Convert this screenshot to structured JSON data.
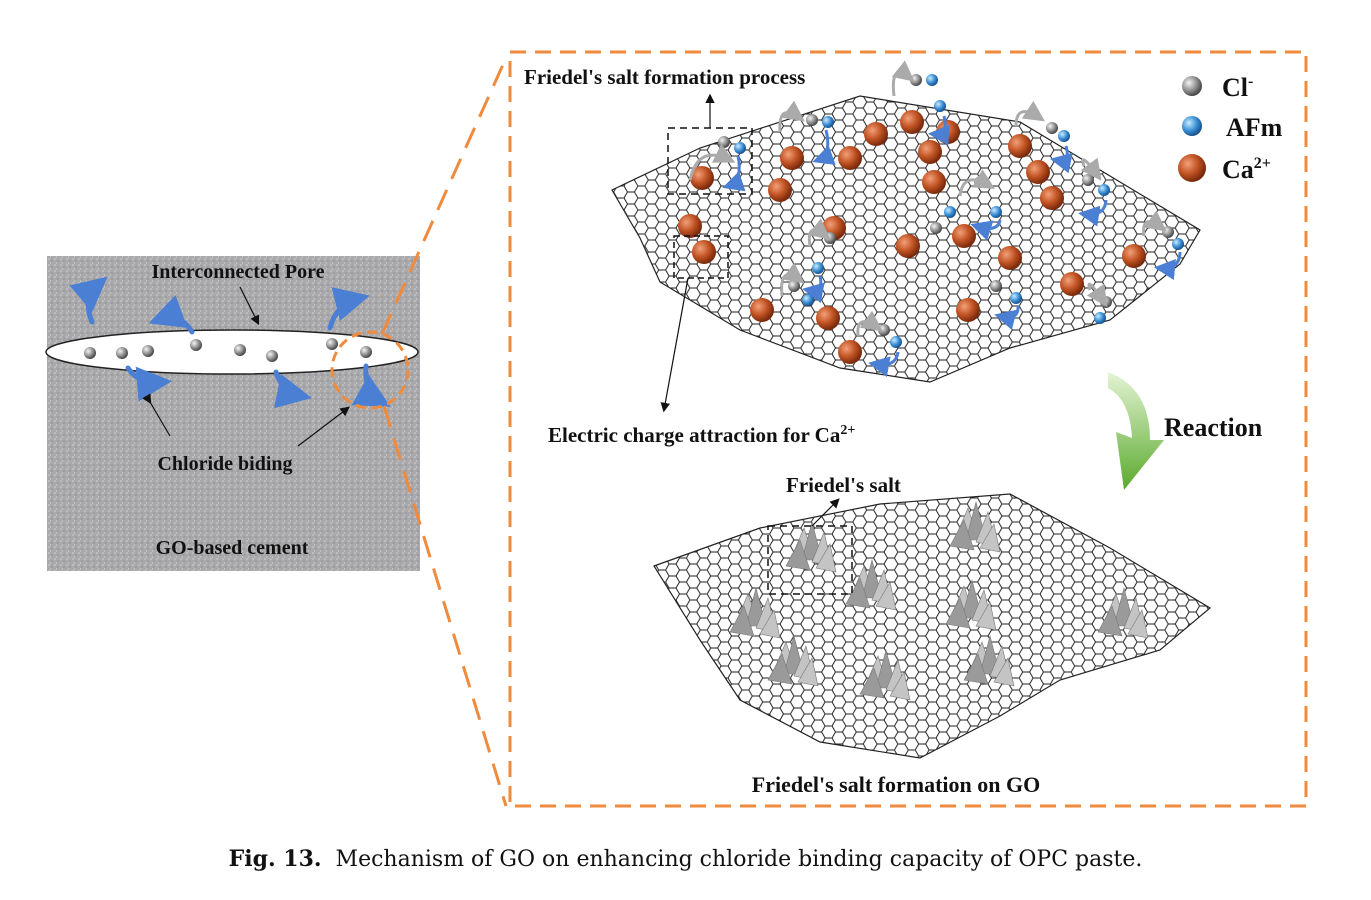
{
  "left_panel": {
    "pore_label": "Interconnected  Pore",
    "binding_label": "Chloride biding",
    "material_label": "GO-based cement"
  },
  "right_panel": {
    "process_label": "Friedel's salt formation process",
    "attraction_label": "Electric charge attraction for Ca",
    "attraction_sup": "2+",
    "reaction_label": "Reaction",
    "salt_label": "Friedel's salt",
    "bottom_label": "Friedel's salt formation on GO"
  },
  "legend": [
    {
      "label": "Cl",
      "sup": "-",
      "color": "#8a8a8a"
    },
    {
      "label": "AFm",
      "sup": "",
      "color": "#3a8fd6"
    },
    {
      "label": "Ca",
      "sup": "2+",
      "color": "#b8471c"
    }
  ],
  "caption": {
    "prefix": "Fig. 13.",
    "text": "Mechanism of GO on enhancing chloride binding capacity of OPC paste."
  },
  "colors": {
    "dash_orange": "#f08a3c",
    "arrow_blue": "#4a7fd4",
    "reaction_green": "#6ab83a",
    "ca_red": "#b8471c",
    "cl_gray": "#8a8a8a",
    "afm_blue": "#3a8fd6"
  }
}
